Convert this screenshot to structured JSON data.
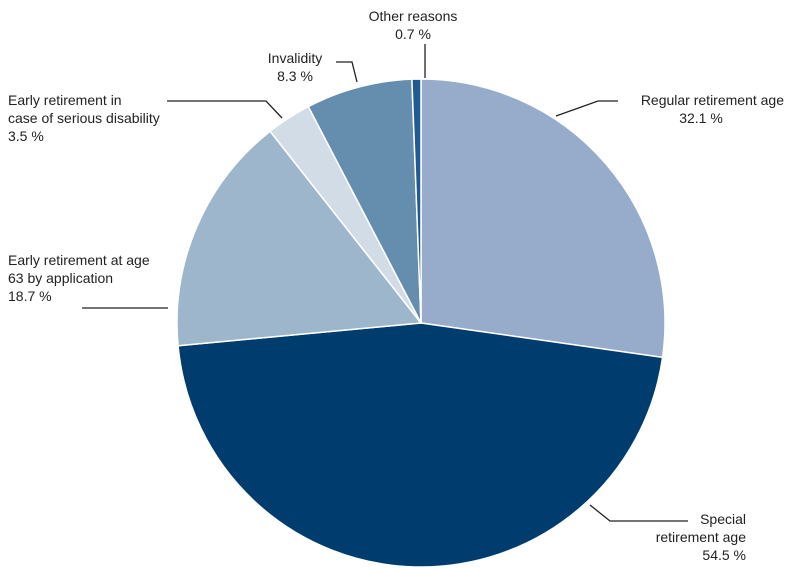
{
  "chart_data": {
    "type": "pie",
    "start_angle_deg": 0,
    "direction": "clockwise",
    "slices": [
      {
        "name": "Regular retirement age",
        "value": 32.1,
        "value_label": "32.1 %",
        "color": "#97abca"
      },
      {
        "name": "Special retirement age",
        "value": 54.5,
        "value_label": "54.5 %",
        "color": "#003d6e"
      },
      {
        "name": "Early retirement at age 63 by application",
        "value": 18.7,
        "value_label": "18.7 %",
        "color": "#9db6cb"
      },
      {
        "name": "Early retirement in case of serious disability",
        "value": 3.5,
        "value_label": "3.5 %",
        "color": "#d1dce6"
      },
      {
        "name": "Invalidity",
        "value": 8.3,
        "value_label": "8.3 %",
        "color": "#658eae"
      },
      {
        "name": "Other reasons",
        "value": 0.7,
        "value_label": "0.7 %",
        "color": "#1f5b8e"
      }
    ]
  },
  "labels": {
    "regular": {
      "line1": "Regular retirement age",
      "value": "32.1 %"
    },
    "special": {
      "line1": "Special",
      "line2": "retirement age",
      "value": "54.5 %"
    },
    "early63": {
      "line1": "Early retirement at age",
      "line2": "63 by application",
      "value": "18.7 %"
    },
    "disability": {
      "line1": "Early retirement in",
      "line2": "case of serious disability",
      "value": "3.5 %"
    },
    "invalidity": {
      "line1": "Invalidity",
      "value": "8.3 %"
    },
    "other": {
      "line1": "Other reasons",
      "value": "0.7 %"
    }
  }
}
